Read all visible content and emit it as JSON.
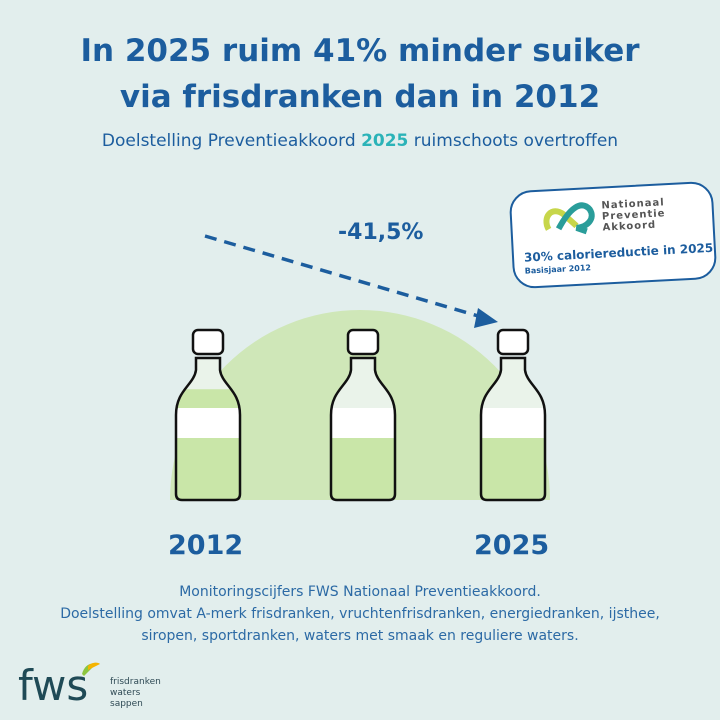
{
  "title_line1": "In 2025 ruim 41% minder suiker",
  "title_line2": "via frisdranken dan in 2012",
  "subtitle": {
    "before": "Doelstelling Preventieakkoord ",
    "highlight": "2025",
    "after": " ruimschoots overtroffen"
  },
  "reduction_label": "-41,5%",
  "badge": {
    "org_line1": "Nationaal",
    "org_line2": "Preventie",
    "org_line3": "Akkoord",
    "goal": "30% caloriereductie in 2025",
    "base": "Basisjaar 2012"
  },
  "bottles": [
    {
      "year": "2012",
      "fill": 0.78
    },
    {
      "year": "",
      "fill": 0.62
    },
    {
      "year": "2025",
      "fill": 0.46
    }
  ],
  "years": {
    "start": "2012",
    "end": "2025"
  },
  "footnote_line1": "Monitoringscijfers FWS Nationaal Preventieakkoord.",
  "footnote_line2": "Doelstelling omvat A-merk frisdranken, vruchtenfrisdranken, energiedranken, ijsthee,",
  "footnote_line3": "siropen, sportdranken, waters met smaak en reguliere waters.",
  "logo": {
    "mark": "fws",
    "line1": "frisdranken",
    "line2": "waters",
    "line3": "sappen"
  },
  "colors": {
    "primary": "#1c5d9e",
    "accent": "#2bb3b8",
    "green": "#cfe7b8",
    "background": "#e2eeed"
  }
}
